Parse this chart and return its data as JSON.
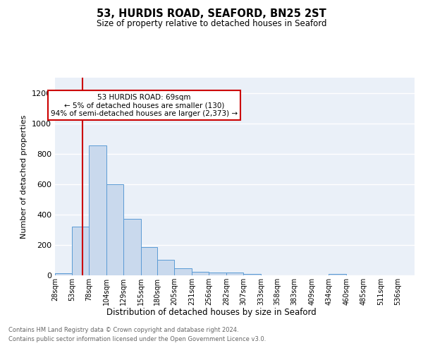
{
  "title": "53, HURDIS ROAD, SEAFORD, BN25 2ST",
  "subtitle": "Size of property relative to detached houses in Seaford",
  "xlabel": "Distribution of detached houses by size in Seaford",
  "ylabel": "Number of detached properties",
  "footnote1": "Contains HM Land Registry data © Crown copyright and database right 2024.",
  "footnote2": "Contains public sector information licensed under the Open Government Licence v3.0.",
  "annotation_title": "53 HURDIS ROAD: 69sqm",
  "annotation_line2": "← 5% of detached houses are smaller (130)",
  "annotation_line3": "94% of semi-detached houses are larger (2,373) →",
  "bar_color": "#c9d9ed",
  "bar_edge_color": "#5b9bd5",
  "ref_line_color": "#cc0000",
  "ref_line_x": 69,
  "categories": [
    "28sqm",
    "53sqm",
    "78sqm",
    "104sqm",
    "129sqm",
    "155sqm",
    "180sqm",
    "205sqm",
    "231sqm",
    "256sqm",
    "282sqm",
    "307sqm",
    "333sqm",
    "358sqm",
    "383sqm",
    "409sqm",
    "434sqm",
    "460sqm",
    "485sqm",
    "511sqm",
    "536sqm"
  ],
  "bin_edges": [
    28,
    53,
    78,
    104,
    129,
    155,
    180,
    205,
    231,
    256,
    282,
    307,
    333,
    358,
    383,
    409,
    434,
    460,
    485,
    511,
    536
  ],
  "bin_widths": [
    25,
    25,
    26,
    25,
    26,
    25,
    25,
    26,
    25,
    26,
    25,
    26,
    25,
    25,
    26,
    25,
    26,
    25,
    26,
    25,
    25
  ],
  "values": [
    15,
    320,
    855,
    600,
    370,
    185,
    100,
    47,
    22,
    17,
    17,
    10,
    0,
    0,
    0,
    0,
    10,
    0,
    0,
    0,
    0
  ],
  "ylim": [
    0,
    1300
  ],
  "yticks": [
    0,
    200,
    400,
    600,
    800,
    1000,
    1200
  ],
  "background_color": "#eaf0f8",
  "fig_background": "#ffffff",
  "grid_color": "#ffffff",
  "annotation_box_color": "#ffffff",
  "annotation_box_edge": "#cc0000"
}
